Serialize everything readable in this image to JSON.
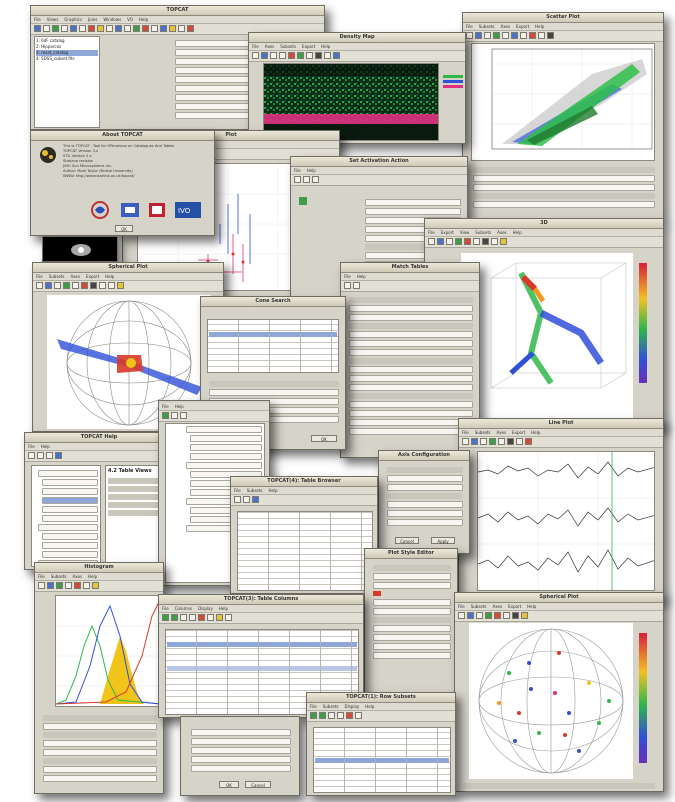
{
  "windows": {
    "control": {
      "title": "TOPCAT",
      "list": [
        "1: 6dF catalog",
        "2: Hipparcos",
        "3: rosat_catalog",
        "4: SDSS_subset.fits"
      ]
    },
    "density": {
      "title": "Density Map"
    },
    "scatter": {
      "title": "Scatter Plot"
    },
    "about": {
      "title": "About TOPCAT",
      "lines": [
        "This is TOPCAT - Tool for OPerations on Catalogues And Tables",
        "TOPCAT Version 3.x",
        "STIL Version 2.x",
        "Starjava revision",
        "JVM: Sun Microsystems Inc.",
        "Author: Mark Taylor (Bristol University)",
        "WWW: http://www.starlink.ac.uk/topcat/"
      ]
    },
    "errorplot": {
      "title": "Plot"
    },
    "activation": {
      "title": "Set Activation Action"
    },
    "plot3d": {
      "title": "3D"
    },
    "match": {
      "title": "Match Tables"
    },
    "sphere1": {
      "title": "Spherical Plot"
    },
    "cone": {
      "title": "Cone Search"
    },
    "help": {
      "title": "TOPCAT Help"
    },
    "help_heading": "4.2 Table Views",
    "linesplot": {
      "title": "Line Plot"
    },
    "axis": {
      "title": "Axis Configuration"
    },
    "tabledata": {
      "title": "TOPCAT(4): Table Browser"
    },
    "histogram": {
      "title": "Histogram"
    },
    "columns": {
      "title": "TOPCAT(3): Table Columns"
    },
    "plotstyle": {
      "title": "Plot Style Editor"
    },
    "sphere2": {
      "title": "Spherical Plot"
    },
    "rowsubsets": {
      "title": "TOPCAT(1): Row Subsets"
    }
  },
  "colors": {
    "window_bg": "#d6d3c9",
    "green": "#2fb84a",
    "blue": "#3050d8",
    "magenta": "#e0307f",
    "orange": "#f29a20",
    "yellow": "#f0c419",
    "red": "#d83a2a"
  },
  "icons": [
    "window-frame",
    "toolbar-button-icons",
    "list-icon",
    "globe-icon",
    "table-icon"
  ]
}
